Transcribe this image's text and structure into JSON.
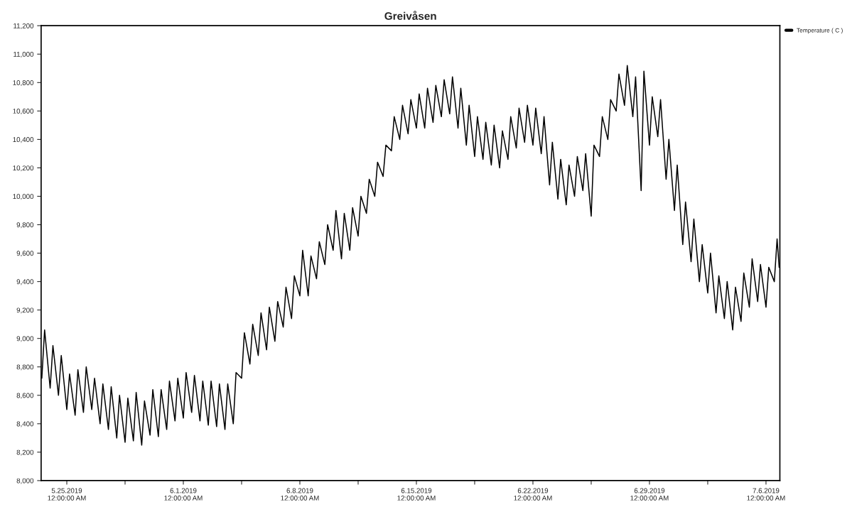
{
  "chart_data": {
    "type": "line",
    "title": "Greivåsen",
    "xlim": [
      "2019-05-23T11:00",
      "2019-07-06T20:00"
    ],
    "ylim": [
      8000,
      11200
    ],
    "yticks": [
      {
        "value": 8000,
        "label": "8,000"
      },
      {
        "value": 8200,
        "label": "8,200"
      },
      {
        "value": 8400,
        "label": "8,400"
      },
      {
        "value": 8600,
        "label": "8,600"
      },
      {
        "value": 8800,
        "label": "8,800"
      },
      {
        "value": 9000,
        "label": "9,000"
      },
      {
        "value": 9200,
        "label": "9,200"
      },
      {
        "value": 9400,
        "label": "9,400"
      },
      {
        "value": 9600,
        "label": "9,600"
      },
      {
        "value": 9800,
        "label": "9,800"
      },
      {
        "value": 10000,
        "label": "10,000"
      },
      {
        "value": 10200,
        "label": "10,200"
      },
      {
        "value": 10400,
        "label": "10,400"
      },
      {
        "value": 10600,
        "label": "10,600"
      },
      {
        "value": 10800,
        "label": "10,800"
      },
      {
        "value": 11000,
        "label": "11,000"
      },
      {
        "value": 11200,
        "label": "11,200"
      }
    ],
    "xticks": [
      {
        "value": "2019-05-25T00:00",
        "label": "5.25.2019\n12:00:00 AM"
      },
      {
        "value": "2019-05-28T12:00",
        "label": null
      },
      {
        "value": "2019-06-01T00:00",
        "label": "6.1.2019\n12:00:00 AM"
      },
      {
        "value": "2019-06-04T12:00",
        "label": null
      },
      {
        "value": "2019-06-08T00:00",
        "label": "6.8.2019\n12:00:00 AM"
      },
      {
        "value": "2019-06-11T12:00",
        "label": null
      },
      {
        "value": "2019-06-15T00:00",
        "label": "6.15.2019\n12:00:00 AM"
      },
      {
        "value": "2019-06-18T12:00",
        "label": null
      },
      {
        "value": "2019-06-22T00:00",
        "label": "6.22.2019\n12:00:00 AM"
      },
      {
        "value": "2019-06-25T12:00",
        "label": null
      },
      {
        "value": "2019-06-29T00:00",
        "label": "6.29.2019\n12:00:00 AM"
      },
      {
        "value": "2019-07-02T12:00",
        "label": null
      },
      {
        "value": "2019-07-06T00:00",
        "label": "7.6.2019\n12:00:00 AM"
      }
    ],
    "grid": false,
    "legend": "top right",
    "marker": "none",
    "line_style": "solid",
    "series": [
      {
        "name": "Temperature ( C )",
        "color": "#000000",
        "x": [
          "2019-05-23T12:00",
          "2019-05-23T16:00",
          "2019-05-24T00:00",
          "2019-05-24T04:00",
          "2019-05-24T12:00",
          "2019-05-24T16:00",
          "2019-05-25T00:00",
          "2019-05-25T04:00",
          "2019-05-25T12:00",
          "2019-05-25T16:00",
          "2019-05-26T00:00",
          "2019-05-26T04:00",
          "2019-05-26T12:00",
          "2019-05-26T16:00",
          "2019-05-27T00:00",
          "2019-05-27T04:00",
          "2019-05-27T12:00",
          "2019-05-27T16:00",
          "2019-05-28T00:00",
          "2019-05-28T04:00",
          "2019-05-28T12:00",
          "2019-05-28T16:00",
          "2019-05-29T00:00",
          "2019-05-29T04:00",
          "2019-05-29T12:00",
          "2019-05-29T16:00",
          "2019-05-30T00:00",
          "2019-05-30T04:00",
          "2019-05-30T12:00",
          "2019-05-30T16:00",
          "2019-05-31T00:00",
          "2019-05-31T04:00",
          "2019-05-31T12:00",
          "2019-05-31T16:00",
          "2019-06-01T00:00",
          "2019-06-01T04:00",
          "2019-06-01T12:00",
          "2019-06-01T16:00",
          "2019-06-02T00:00",
          "2019-06-02T04:00",
          "2019-06-02T12:00",
          "2019-06-02T16:00",
          "2019-06-03T00:00",
          "2019-06-03T04:00",
          "2019-06-03T12:00",
          "2019-06-03T16:00",
          "2019-06-04T00:00",
          "2019-06-04T04:00",
          "2019-06-04T12:00",
          "2019-06-04T16:00",
          "2019-06-05T00:00",
          "2019-06-05T04:00",
          "2019-06-05T12:00",
          "2019-06-05T16:00",
          "2019-06-06T00:00",
          "2019-06-06T04:00",
          "2019-06-06T12:00",
          "2019-06-06T16:00",
          "2019-06-07T00:00",
          "2019-06-07T04:00",
          "2019-06-07T12:00",
          "2019-06-07T16:00",
          "2019-06-08T00:00",
          "2019-06-08T04:00",
          "2019-06-08T12:00",
          "2019-06-08T16:00",
          "2019-06-09T00:00",
          "2019-06-09T04:00",
          "2019-06-09T12:00",
          "2019-06-09T16:00",
          "2019-06-10T00:00",
          "2019-06-10T04:00",
          "2019-06-10T12:00",
          "2019-06-10T16:00",
          "2019-06-11T00:00",
          "2019-06-11T04:00",
          "2019-06-11T12:00",
          "2019-06-11T16:00",
          "2019-06-12T00:00",
          "2019-06-12T04:00",
          "2019-06-12T12:00",
          "2019-06-12T16:00",
          "2019-06-13T00:00",
          "2019-06-13T04:00",
          "2019-06-13T12:00",
          "2019-06-13T16:00",
          "2019-06-14T00:00",
          "2019-06-14T04:00",
          "2019-06-14T12:00",
          "2019-06-14T16:00",
          "2019-06-15T00:00",
          "2019-06-15T04:00",
          "2019-06-15T12:00",
          "2019-06-15T16:00",
          "2019-06-16T00:00",
          "2019-06-16T04:00",
          "2019-06-16T12:00",
          "2019-06-16T16:00",
          "2019-06-17T00:00",
          "2019-06-17T04:00",
          "2019-06-17T12:00",
          "2019-06-17T16:00",
          "2019-06-18T00:00",
          "2019-06-18T04:00",
          "2019-06-18T12:00",
          "2019-06-18T16:00",
          "2019-06-19T00:00",
          "2019-06-19T04:00",
          "2019-06-19T12:00",
          "2019-06-19T16:00",
          "2019-06-20T00:00",
          "2019-06-20T04:00",
          "2019-06-20T12:00",
          "2019-06-20T16:00",
          "2019-06-21T00:00",
          "2019-06-21T04:00",
          "2019-06-21T12:00",
          "2019-06-21T16:00",
          "2019-06-22T00:00",
          "2019-06-22T04:00",
          "2019-06-22T12:00",
          "2019-06-22T16:00",
          "2019-06-23T00:00",
          "2019-06-23T04:00",
          "2019-06-23T12:00",
          "2019-06-23T16:00",
          "2019-06-24T00:00",
          "2019-06-24T04:00",
          "2019-06-24T12:00",
          "2019-06-24T16:00",
          "2019-06-25T00:00",
          "2019-06-25T04:00",
          "2019-06-25T12:00",
          "2019-06-25T16:00",
          "2019-06-26T00:00",
          "2019-06-26T04:00",
          "2019-06-26T12:00",
          "2019-06-26T16:00",
          "2019-06-27T00:00",
          "2019-06-27T04:00",
          "2019-06-27T12:00",
          "2019-06-27T16:00",
          "2019-06-28T00:00",
          "2019-06-28T04:00",
          "2019-06-28T12:00",
          "2019-06-28T16:00",
          "2019-06-29T00:00",
          "2019-06-29T04:00",
          "2019-06-29T12:00",
          "2019-06-29T16:00",
          "2019-06-30T00:00",
          "2019-06-30T04:00",
          "2019-06-30T12:00",
          "2019-06-30T16:00",
          "2019-07-01T00:00",
          "2019-07-01T04:00",
          "2019-07-01T12:00",
          "2019-07-01T16:00",
          "2019-07-02T00:00",
          "2019-07-02T04:00",
          "2019-07-02T12:00",
          "2019-07-02T16:00",
          "2019-07-03T00:00",
          "2019-07-03T04:00",
          "2019-07-03T12:00",
          "2019-07-03T16:00",
          "2019-07-04T00:00",
          "2019-07-04T04:00",
          "2019-07-04T12:00",
          "2019-07-04T16:00",
          "2019-07-05T00:00",
          "2019-07-05T04:00",
          "2019-07-05T12:00",
          "2019-07-05T16:00",
          "2019-07-06T00:00",
          "2019-07-06T04:00",
          "2019-07-06T12:00",
          "2019-07-06T16:00",
          "2019-07-06T19:00"
        ],
        "values": [
          8720,
          9060,
          8650,
          8950,
          8600,
          8880,
          8500,
          8750,
          8460,
          8780,
          8480,
          8800,
          8500,
          8720,
          8400,
          8680,
          8360,
          8660,
          8300,
          8600,
          8270,
          8580,
          8280,
          8620,
          8250,
          8560,
          8320,
          8640,
          8310,
          8640,
          8360,
          8700,
          8420,
          8720,
          8440,
          8760,
          8480,
          8740,
          8420,
          8700,
          8390,
          8700,
          8380,
          8680,
          8360,
          8680,
          8400,
          8760,
          8720,
          9040,
          8820,
          9100,
          8880,
          9180,
          8920,
          9220,
          8980,
          9260,
          9080,
          9360,
          9140,
          9440,
          9300,
          9620,
          9300,
          9580,
          9420,
          9680,
          9520,
          9800,
          9620,
          9900,
          9560,
          9880,
          9620,
          9920,
          9720,
          10000,
          9880,
          10120,
          10000,
          10240,
          10140,
          10360,
          10320,
          10560,
          10400,
          10640,
          10440,
          10680,
          10480,
          10720,
          10480,
          10760,
          10520,
          10780,
          10560,
          10820,
          10580,
          10840,
          10480,
          10760,
          10360,
          10640,
          10280,
          10560,
          10260,
          10520,
          10220,
          10500,
          10200,
          10460,
          10260,
          10560,
          10340,
          10620,
          10380,
          10640,
          10360,
          10620,
          10300,
          10560,
          10080,
          10380,
          9980,
          10260,
          9940,
          10220,
          10000,
          10280,
          10040,
          10300,
          9860,
          10360,
          10280,
          10560,
          10400,
          10680,
          10600,
          10860,
          10640,
          10920,
          10560,
          10840,
          10040,
          10880,
          10360,
          10700,
          10420,
          10680,
          10120,
          10400,
          9900,
          10220,
          9660,
          9960,
          9540,
          9840,
          9400,
          9660,
          9320,
          9600,
          9180,
          9440,
          9140,
          9400,
          9060,
          9360,
          9120,
          9460,
          9220,
          9560,
          9260,
          9520,
          9220,
          9500,
          9400,
          9700,
          9500
        ]
      }
    ]
  }
}
